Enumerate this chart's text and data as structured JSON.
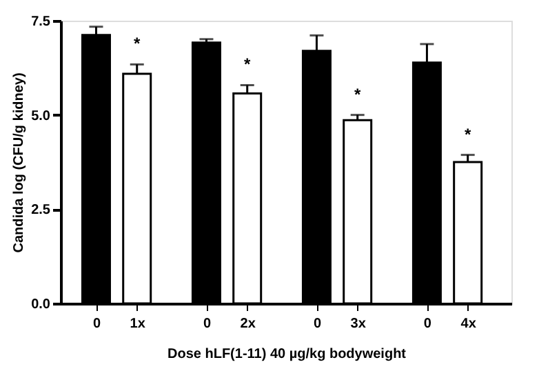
{
  "chart_data": {
    "type": "bar",
    "categories": [
      "0",
      "1x",
      "0",
      "2x",
      "0",
      "3x",
      "0",
      "4x"
    ],
    "values": [
      7.12,
      6.09,
      6.92,
      5.57,
      6.7,
      4.86,
      6.39,
      3.75
    ],
    "errors": [
      0.22,
      0.25,
      0.09,
      0.22,
      0.41,
      0.14,
      0.49,
      0.19
    ],
    "colors": [
      "#000000",
      "#ffffff",
      "#000000",
      "#ffffff",
      "#000000",
      "#ffffff",
      "#000000",
      "#ffffff"
    ],
    "xlabel": "Dose hLF(1-11) 40 µg/kg bodyweight",
    "ylabel": "Candida log (CFU/g kidney)",
    "ylim": [
      0,
      7.5
    ],
    "yticks": [
      {
        "value": 0,
        "label": "0.0"
      },
      {
        "value": 2.5,
        "label": "2.5"
      },
      {
        "value": 5,
        "label": "5.0"
      },
      {
        "value": 7.5,
        "label": "7.5"
      }
    ],
    "value_labels": [
      null,
      "*",
      null,
      "*",
      null,
      "*",
      null,
      "*"
    ],
    "grid": false,
    "legend": false
  }
}
